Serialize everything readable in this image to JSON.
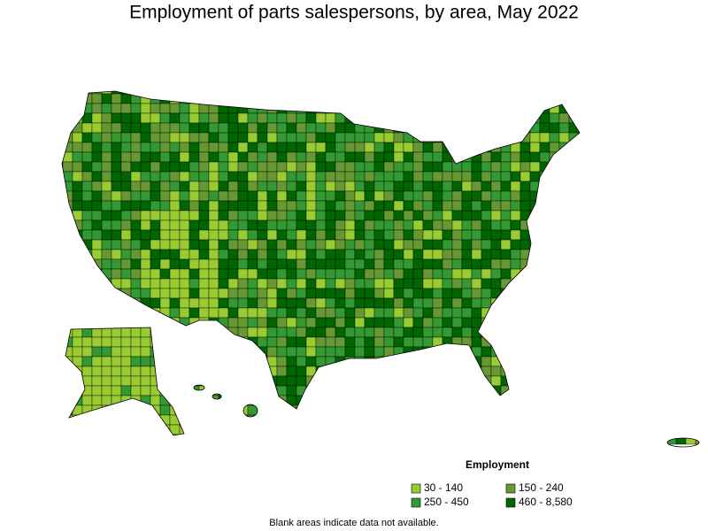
{
  "title": "Employment of parts salespersons, by area, May 2022",
  "legend": {
    "title": "Employment",
    "items": [
      {
        "label": "30 - 140",
        "color": "#99cc33"
      },
      {
        "label": "150 - 240",
        "color": "#669933"
      },
      {
        "label": "250 - 450",
        "color": "#339933"
      },
      {
        "label": "460 - 8,580",
        "color": "#006600"
      }
    ]
  },
  "note": "Blank areas indicate data not available."
}
